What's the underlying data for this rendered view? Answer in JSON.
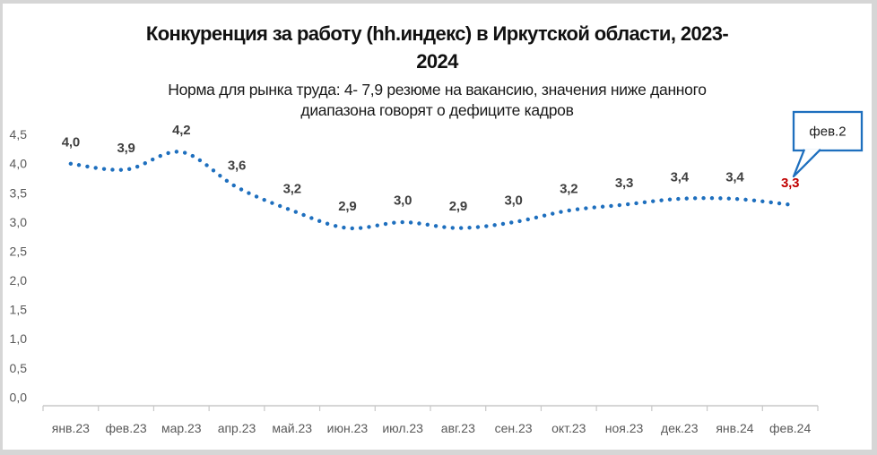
{
  "window": {
    "background_color": "#d6d6d6",
    "card_background": "#ffffff"
  },
  "header": {
    "title_line1": "Конкуренция за работу (hh.индекс) в Иркутской области, 2023-",
    "title_line2": "2024",
    "subtitle_line1": "Норма для рынка труда: 4- 7,9 резюме на вакансию, значения ниже данного",
    "subtitle_line2": "диапазона говорят о дефиците кадров"
  },
  "chart_data": {
    "type": "line",
    "line_style": "dotted",
    "smooth": true,
    "grid": false,
    "legend": "none",
    "title": "Конкуренция за работу (hh.индекс) в Иркутской области, 2023-2024",
    "subtitle": "Норма для рынка труда: 4- 7,9 резюме на вакансию, значения ниже данного диапазона говорят о дефиците кадров",
    "categories": [
      "янв.23",
      "фев.23",
      "мар.23",
      "апр.23",
      "май.23",
      "июн.23",
      "июл.23",
      "авг.23",
      "сен.23",
      "окт.23",
      "ноя.23",
      "дек.23",
      "янв.24",
      "фев.24"
    ],
    "values": [
      4.0,
      3.9,
      4.2,
      3.6,
      3.2,
      2.9,
      3.0,
      2.9,
      3.0,
      3.2,
      3.3,
      3.4,
      3.4,
      3.3
    ],
    "data_labels": [
      "4,0",
      "3,9",
      "4,2",
      "3,6",
      "3,2",
      "2,9",
      "3,0",
      "2,9",
      "3,0",
      "3,2",
      "3,3",
      "3,4",
      "3,4",
      "3,3"
    ],
    "y_tick_labels": [
      "4,5",
      "4,0",
      "3,5",
      "3,0",
      "2,5",
      "2,0",
      "1,5",
      "1,0",
      "0,5",
      "0,0"
    ],
    "ylim": [
      0,
      4.5
    ],
    "y_step": 0.5,
    "colors": {
      "line": "#1E6FBE",
      "data_label": "#3F3F3F",
      "last_data_label": "#C00000",
      "axis_line": "#C8C8C8",
      "tick_label": "#595959",
      "callout_border": "#1E6FBE",
      "callout_text": "#1a1a1a"
    },
    "annotation": {
      "text": "фев.2",
      "target": "фев.24"
    }
  }
}
